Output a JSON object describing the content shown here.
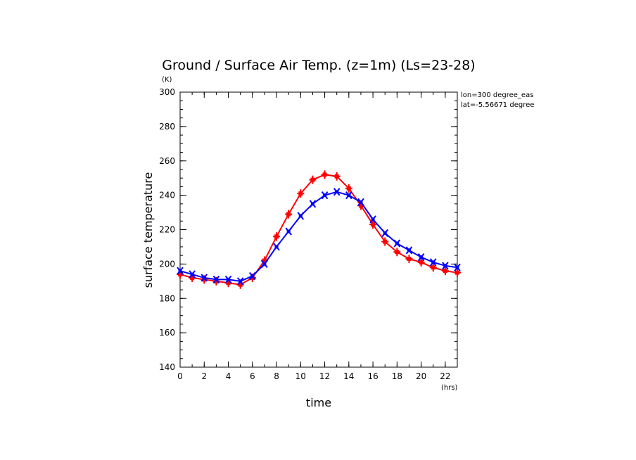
{
  "chart_data": {
    "type": "line",
    "title": "Ground / Surface Air Temp. (z=1m) (Ls=23-28)",
    "xlabel": "time",
    "ylabel": "surface temperature",
    "x_unit": "(hrs)",
    "y_unit": "(K)",
    "xlim": [
      0,
      23
    ],
    "ylim": [
      140,
      300
    ],
    "x_ticks": [
      0,
      2,
      4,
      6,
      8,
      10,
      12,
      14,
      16,
      18,
      20,
      22
    ],
    "y_ticks": [
      140,
      160,
      180,
      200,
      220,
      240,
      260,
      280,
      300
    ],
    "annotations": [
      "lon=300 degree_eas",
      "lat=-5.56671 degree"
    ],
    "x": [
      0,
      1,
      2,
      3,
      4,
      5,
      6,
      7,
      8,
      9,
      10,
      11,
      12,
      13,
      14,
      15,
      16,
      17,
      18,
      19,
      20,
      21,
      22,
      23
    ],
    "series": [
      {
        "color": "#ff0000",
        "marker": "plus",
        "values": [
          194,
          192,
          191,
          190,
          189,
          188,
          192,
          202,
          216,
          229,
          241,
          249,
          252,
          251,
          244,
          234,
          223,
          213,
          207,
          203,
          201,
          198,
          196,
          195
        ]
      },
      {
        "color": "#0000ff",
        "marker": "x",
        "values": [
          196,
          194,
          192,
          191,
          191,
          190,
          193,
          200,
          210,
          219,
          228,
          235,
          240,
          242,
          240,
          236,
          226,
          218,
          212,
          208,
          204,
          201,
          199,
          198
        ]
      }
    ]
  }
}
